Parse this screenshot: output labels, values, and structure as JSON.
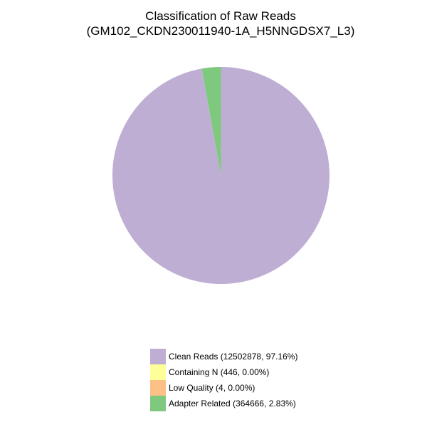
{
  "title": {
    "line1": "Classification of Raw Reads",
    "line2": "(GM102_CKDN230011940-1A_H5NNGDSX7_L3)"
  },
  "chart_data": {
    "type": "pie",
    "title": "Classification of Raw Reads",
    "subtitle": "(GM102_CKDN230011940-1A_H5NNGDSX7_L3)",
    "start_angle": "top",
    "direction": "clockwise",
    "legend_position": "bottom-center",
    "background_color": "#ffffff",
    "slices": [
      {
        "label": "Clean Reads",
        "count": 12502878,
        "pct": "97.16%",
        "color": "#BEAED4",
        "legend_label": "Clean Reads (12502878, 97.16%)"
      },
      {
        "label": "Containing N",
        "count": 446,
        "pct": "0.00%",
        "color": "#FFFF99",
        "legend_label": "Containing N (446, 0.00%)"
      },
      {
        "label": "Low Quality",
        "count": 4,
        "pct": "0.00%",
        "color": "#FDC086",
        "legend_label": "Low Quality (4, 0.00%)"
      },
      {
        "label": "Adapter Related",
        "count": 364666,
        "pct": "2.83%",
        "color": "#7FC97F",
        "legend_label": "Adapter Related (364666, 2.83%)"
      }
    ]
  }
}
